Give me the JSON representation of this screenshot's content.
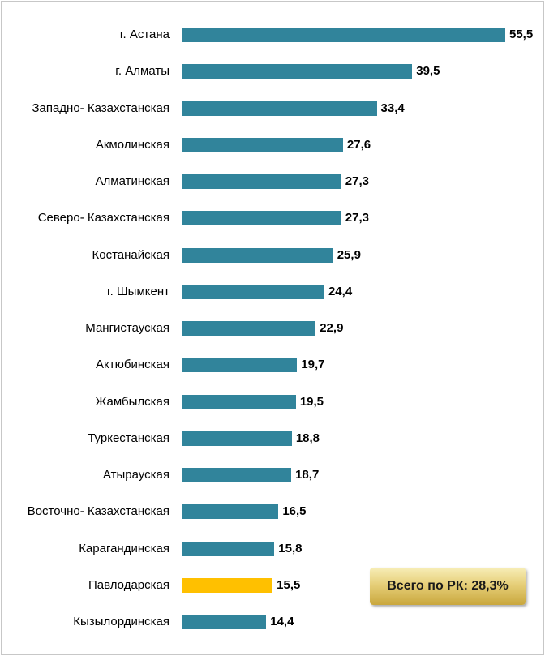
{
  "chart_data": {
    "type": "bar",
    "orientation": "horizontal",
    "categories": [
      "г. Астана",
      "г. Алматы",
      "Западно- Казахстанская",
      "Акмолинская",
      "Алматинская",
      "Северо- Казахстанская",
      "Костанайская",
      "г. Шымкент",
      "Мангистауская",
      "Актюбинская",
      "Жамбылская",
      "Туркестанская",
      "Атырауская",
      "Восточно- Казахстанская",
      "Карагандинская",
      "Павлодарская",
      "Кызылординская"
    ],
    "values": [
      55.5,
      39.5,
      33.4,
      27.6,
      27.3,
      27.3,
      25.9,
      24.4,
      22.9,
      19.7,
      19.5,
      18.8,
      18.7,
      16.5,
      15.8,
      15.5,
      14.4
    ],
    "value_labels": [
      "55,5",
      "39,5",
      "33,4",
      "27,6",
      "27,3",
      "27,3",
      "25,9",
      "24,4",
      "22,9",
      "19,7",
      "19,5",
      "18,8",
      "18,7",
      "16,5",
      "15,8",
      "15,5",
      "14,4"
    ],
    "highlight_index": 15,
    "colors": {
      "bar": "#31849b",
      "highlight": "#ffc000"
    },
    "xlim": [
      0,
      55.5
    ],
    "grid": false,
    "annotation": "Всего по РК: 28,3%"
  }
}
